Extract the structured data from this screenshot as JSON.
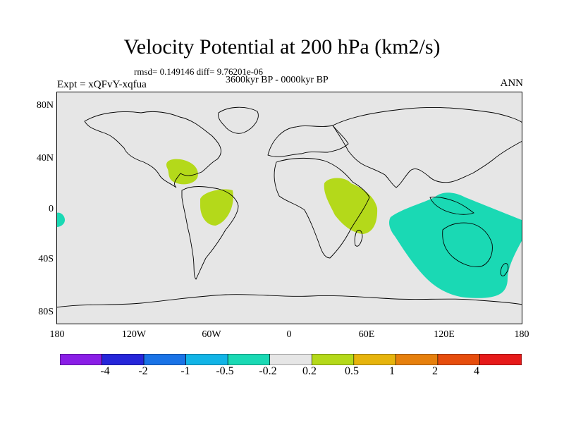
{
  "title": "Velocity Potential at 200 hPa (km2/s)",
  "stats_text": "rmsd= 0.149146 diff= 9.76201e-06",
  "period_text": "3600kyr BP - 0000kyr BP",
  "experiment_text": "Expt = xQFvY-xqfua",
  "season_text": "ANN",
  "map": {
    "background_color": "#e6e6e6",
    "coastline_color": "#000000",
    "lat_labels": [
      "80N",
      "40N",
      "0",
      "40S",
      "80S"
    ],
    "lon_labels": [
      "180",
      "120W",
      "60W",
      "0",
      "60E",
      "120E",
      "180"
    ]
  },
  "colorbar": {
    "colors": [
      "#8a1ee6",
      "#2626d9",
      "#1a73e6",
      "#12b4e6",
      "#1ad9b4",
      "#e6e6e6",
      "#b4d91a",
      "#e6b40d",
      "#e6800d",
      "#e64d0d",
      "#e61a1a"
    ],
    "labels": [
      "-4",
      "-2",
      "-1",
      "-0.5",
      "-0.2",
      "0.2",
      "0.5",
      "1",
      "2",
      "4"
    ]
  }
}
